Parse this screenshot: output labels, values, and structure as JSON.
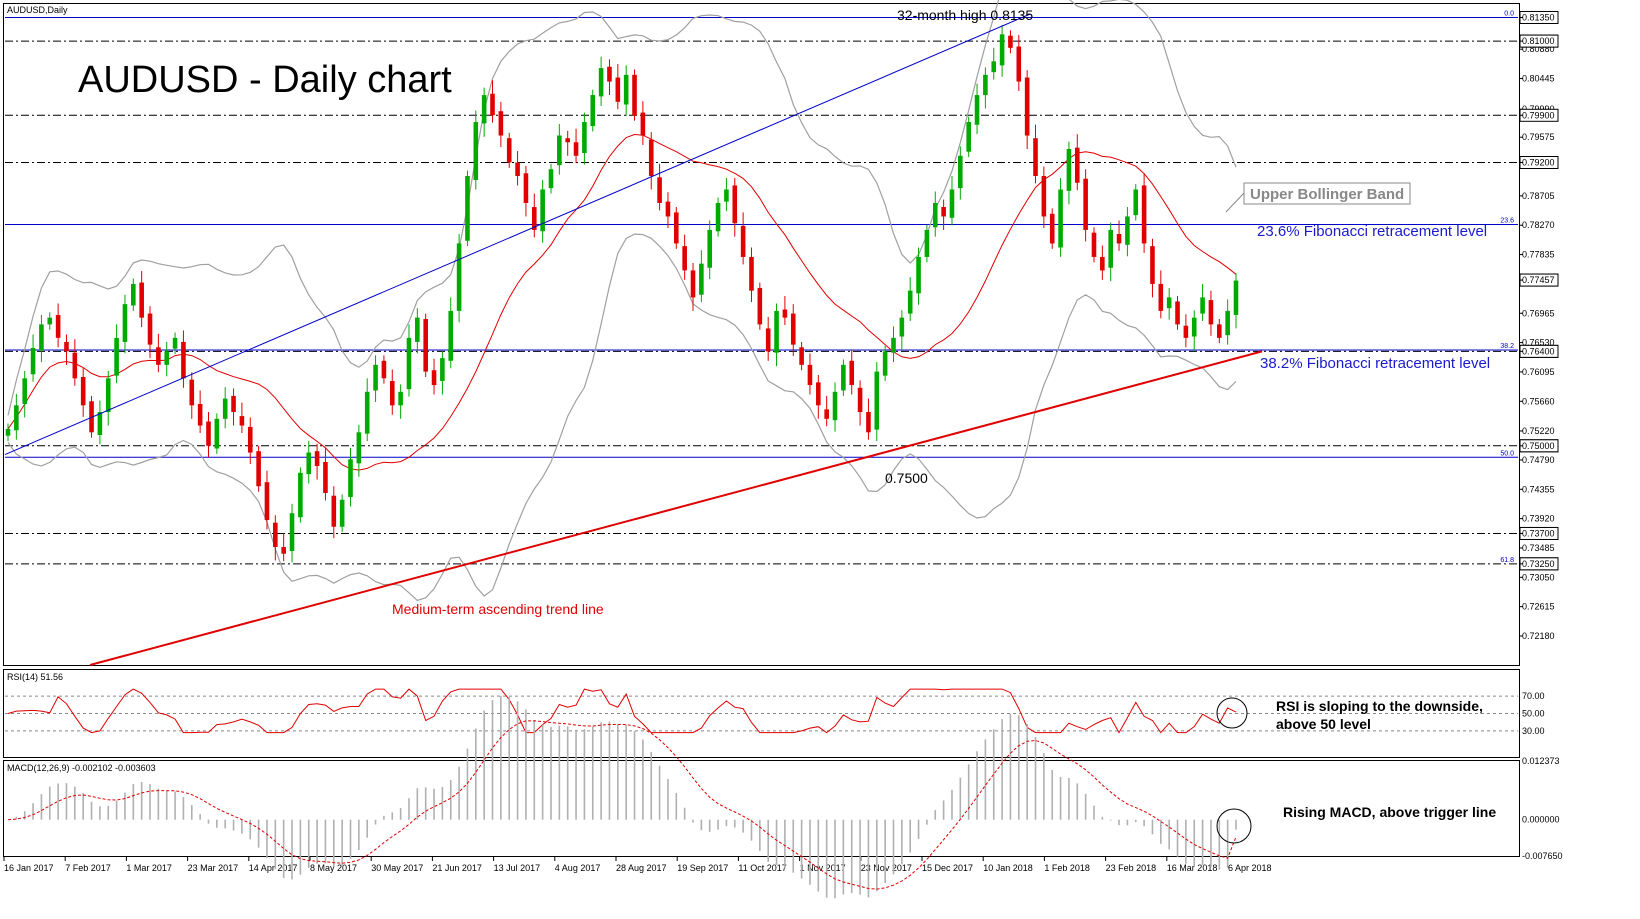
{
  "symbol_label": "AUDUSD,Daily",
  "chart_title": "AUDUSD - Daily chart",
  "rsi_label": "RSI(14) 51.56",
  "macd_label": "MACD(12,26,9) -0.002102 -0.003603",
  "colors": {
    "bull": "#00aa00",
    "bear": "#e00000",
    "sma": "#e00000",
    "bands": "#a0a0a0",
    "fib": "#0000cc",
    "trend": "#e00000",
    "rsi": "#e00000",
    "macd_hist": "#b0b0b0",
    "macd_signal": "#e00000"
  },
  "annotations": {
    "high": "32-month high 0.8135",
    "low": "0.7500",
    "upper_band": "Upper Bollinger Band",
    "fib236": "23.6% Fibonacci retracement level",
    "fib382": "38.2% Fibonacci retracement level",
    "trend": "Medium-term ascending trend line",
    "rsi_note_1": "RSI is sloping to the downside,",
    "rsi_note_2": "above 50 level",
    "macd_note": "Rising MACD, above trigger line"
  },
  "chart_data": {
    "type": "candlestick",
    "price_axis": {
      "min": 0.7175,
      "max": 0.8155,
      "ticks": [
        "0.81000",
        "0.80880",
        "0.80445",
        "0.79990",
        "0.79575",
        "0.79200",
        "0.78705",
        "0.78270",
        "0.77835",
        "0.77457",
        "0.76965",
        "0.76530",
        "0.76400",
        "0.76095",
        "0.75660",
        "0.75220",
        "0.75000",
        "0.74790",
        "0.74355",
        "0.73920",
        "0.73700",
        "0.73485",
        "0.73250",
        "0.73050",
        "0.72615",
        "0.72180"
      ],
      "boxed_ticks": [
        "0.81350",
        "0.81000",
        "0.79900",
        "0.79200",
        "0.77457",
        "0.76400",
        "0.75000",
        "0.73700",
        "0.73250"
      ]
    },
    "date_labels": [
      "16 Jan 2017",
      "7 Feb 2017",
      "1 Mar 2017",
      "23 Mar 2017",
      "14 Apr 2017",
      "8 May 2017",
      "30 May 2017",
      "21 Jun 2017",
      "13 Jul 2017",
      "4 Aug 2017",
      "28 Aug 2017",
      "19 Sep 2017",
      "11 Oct 2017",
      "1 Nov 2017",
      "23 Nov 2017",
      "15 Dec 2017",
      "10 Jan 2018",
      "1 Feb 2018",
      "23 Feb 2018",
      "16 Mar 2018",
      "6 Apr 2018"
    ],
    "horizontal_levels": [
      {
        "value": 0.8135,
        "style": "solid-blue",
        "fib_label": "0.0"
      },
      {
        "value": 0.81,
        "style": "dashdot-black",
        "fib_label": ""
      },
      {
        "value": 0.799,
        "style": "dashdot-black",
        "fib_label": ""
      },
      {
        "value": 0.792,
        "style": "dashdot-black",
        "fib_label": ""
      },
      {
        "value": 0.7828,
        "style": "solid-blue",
        "fib_label": "23.6"
      },
      {
        "value": 0.7642,
        "style": "solid-blue",
        "fib_label": "38.2"
      },
      {
        "value": 0.764,
        "style": "dashdot-black",
        "fib_label": ""
      },
      {
        "value": 0.75,
        "style": "dashdot-black",
        "fib_label": ""
      },
      {
        "value": 0.7483,
        "style": "solid-blue",
        "fib_label": "50.0"
      },
      {
        "value": 0.737,
        "style": "dashdot-black",
        "fib_label": ""
      },
      {
        "value": 0.7325,
        "style": "dashdot-black",
        "fib_label": "61.8"
      }
    ],
    "price_series": [
      0.7525,
      0.756,
      0.76,
      0.7645,
      0.768,
      0.769,
      0.766,
      0.764,
      0.76,
      0.756,
      0.752,
      0.755,
      0.76,
      0.766,
      0.771,
      0.774,
      0.769,
      0.765,
      0.762,
      0.764,
      0.766,
      0.76,
      0.756,
      0.753,
      0.75,
      0.754,
      0.757,
      0.755,
      0.753,
      0.749,
      0.744,
      0.739,
      0.735,
      0.734,
      0.74,
      0.746,
      0.749,
      0.747,
      0.743,
      0.738,
      0.742,
      0.748,
      0.752,
      0.758,
      0.762,
      0.76,
      0.756,
      0.758,
      0.766,
      0.769,
      0.761,
      0.759,
      0.763,
      0.77,
      0.78,
      0.79,
      0.798,
      0.802,
      0.799,
      0.796,
      0.792,
      0.79,
      0.786,
      0.782,
      0.788,
      0.791,
      0.796,
      0.795,
      0.793,
      0.798,
      0.802,
      0.806,
      0.804,
      0.801,
      0.805,
      0.799,
      0.796,
      0.79,
      0.786,
      0.784,
      0.78,
      0.776,
      0.772,
      0.777,
      0.782,
      0.786,
      0.788,
      0.783,
      0.778,
      0.773,
      0.768,
      0.764,
      0.77,
      0.769,
      0.765,
      0.762,
      0.759,
      0.756,
      0.754,
      0.758,
      0.762,
      0.759,
      0.755,
      0.752,
      0.761,
      0.764,
      0.766,
      0.769,
      0.773,
      0.778,
      0.782,
      0.786,
      0.784,
      0.788,
      0.793,
      0.798,
      0.802,
      0.805,
      0.807,
      0.811,
      0.809,
      0.804,
      0.796,
      0.79,
      0.784,
      0.78,
      0.788,
      0.794,
      0.789,
      0.782,
      0.778,
      0.776,
      0.782,
      0.78,
      0.784,
      0.788,
      0.78,
      0.774,
      0.77,
      0.772,
      0.768,
      0.766,
      0.769,
      0.772,
      0.768,
      0.766,
      0.77,
      0.7745
    ],
    "trend_line": {
      "x": [
        "23 Feb 2017",
        "6 Apr 2018"
      ],
      "y": [
        0.7175,
        0.764
      ]
    },
    "rsi": {
      "range": [
        0,
        100
      ],
      "levels": [
        70,
        50,
        30
      ],
      "ticks": [
        "70.00",
        "50.00",
        "30.00"
      ],
      "current": 51.56
    },
    "macd": {
      "ticks": [
        "0.012373",
        "0.000000",
        "-0.007650"
      ],
      "main": -0.002102,
      "signal": -0.003603
    }
  }
}
